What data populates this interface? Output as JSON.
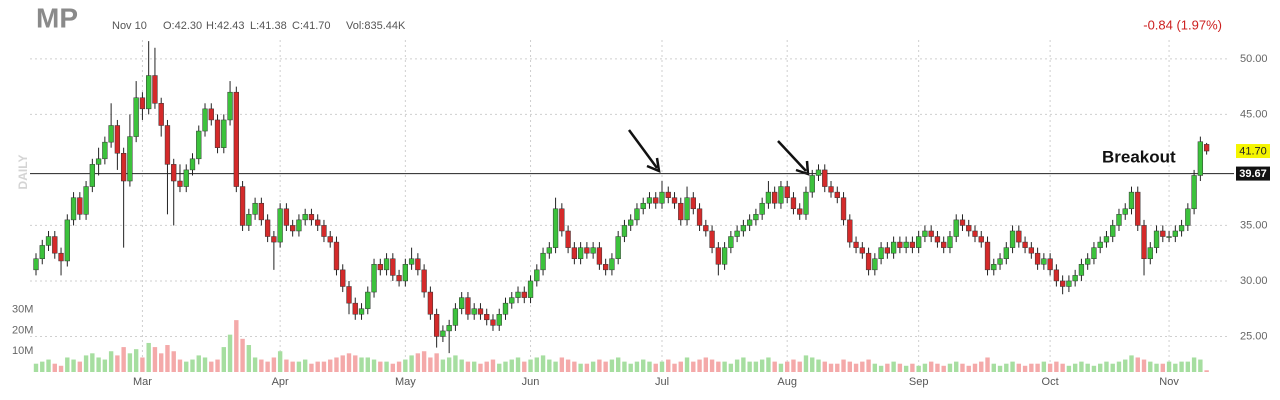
{
  "chart_data": {
    "type": "candlestick",
    "ticker": "MP",
    "date": "Nov 10",
    "open_label": "O:42.30",
    "high_label": "H:42.43",
    "low_label": "L:41.38",
    "close_label": "C:41.70",
    "volume_label": "Vol:835.44K",
    "change_label": "-0.84 (1.97%)",
    "period_label": "DAILY",
    "annotation": "Breakout",
    "up_color": "#3cc23c",
    "down_color": "#d42a2a",
    "up_volume_color": "#a6dea0",
    "down_volume_color": "#f4a9a9",
    "grid": true,
    "ylim": [
      21.8,
      51.7
    ],
    "yticks": [
      {
        "value": 25,
        "label": "25.00"
      },
      {
        "value": 30,
        "label": "30.00"
      },
      {
        "value": 35,
        "label": "35.00"
      },
      {
        "value": 45,
        "label": "45.00"
      },
      {
        "value": 50,
        "label": "50.00"
      }
    ],
    "y2lim": [
      0,
      160
    ],
    "y2ticks": [
      {
        "value": 10,
        "label": "10M"
      },
      {
        "value": 20,
        "label": "20M"
      },
      {
        "value": 30,
        "label": "30M"
      }
    ],
    "reference_line": {
      "value": 39.67,
      "label": "39.67"
    },
    "last_price": {
      "value": 41.7,
      "label": "41.70"
    },
    "categories": [
      null,
      null,
      null,
      null,
      null,
      null,
      null,
      null,
      null,
      null,
      null,
      null,
      null,
      null,
      null,
      null,
      null,
      "Mar",
      null,
      null,
      null,
      null,
      null,
      null,
      null,
      null,
      null,
      null,
      null,
      null,
      null,
      null,
      null,
      null,
      null,
      null,
      null,
      null,
      null,
      "Apr",
      null,
      null,
      null,
      null,
      null,
      null,
      null,
      null,
      null,
      null,
      null,
      null,
      null,
      null,
      null,
      null,
      null,
      null,
      null,
      "May",
      null,
      null,
      null,
      null,
      null,
      null,
      null,
      null,
      null,
      null,
      null,
      null,
      null,
      null,
      null,
      null,
      null,
      null,
      null,
      "Jun",
      null,
      null,
      null,
      null,
      null,
      null,
      null,
      null,
      null,
      null,
      null,
      null,
      null,
      null,
      null,
      null,
      null,
      null,
      null,
      null,
      "Jul",
      null,
      null,
      null,
      null,
      null,
      null,
      null,
      null,
      null,
      null,
      null,
      null,
      null,
      null,
      null,
      null,
      null,
      null,
      null,
      "Aug",
      null,
      null,
      null,
      null,
      null,
      null,
      null,
      null,
      null,
      null,
      null,
      null,
      null,
      null,
      null,
      null,
      null,
      null,
      null,
      null,
      "Sep",
      null,
      null,
      null,
      null,
      null,
      null,
      null,
      null,
      null,
      null,
      null,
      null,
      null,
      null,
      null,
      null,
      null,
      null,
      null,
      null,
      "Oct",
      null,
      null,
      null,
      null,
      null,
      null,
      null,
      null,
      null,
      null,
      null,
      null,
      null,
      null,
      null,
      null,
      null,
      null,
      "Nov",
      null,
      null,
      null,
      null,
      null,
      null
    ],
    "open": [
      31.0,
      32.0,
      33.2,
      34.0,
      32.5,
      31.8,
      35.5,
      37.5,
      36.0,
      38.5,
      40.5,
      41.0,
      42.5,
      44.0,
      41.5,
      39.0,
      43.0,
      46.5,
      45.5,
      48.5,
      46.0,
      44.0,
      40.5,
      39.0,
      38.5,
      40.0,
      41.0,
      43.5,
      45.5,
      44.5,
      42.0,
      44.5,
      47.0,
      38.5,
      35.0,
      36.0,
      37.0,
      35.5,
      34.0,
      33.5,
      36.5,
      35.0,
      34.5,
      35.5,
      36.0,
      35.5,
      35.0,
      34.0,
      33.5,
      31.0,
      29.5,
      28.0,
      27.0,
      27.5,
      29.0,
      31.5,
      31.0,
      32.0,
      30.5,
      30.0,
      31.5,
      32.0,
      31.0,
      29.0,
      27.0,
      25.0,
      25.5,
      26.0,
      27.5,
      28.5,
      27.0,
      27.5,
      27.0,
      26.5,
      26.0,
      27.0,
      28.0,
      28.5,
      29.0,
      28.5,
      30.0,
      31.0,
      32.5,
      33.0,
      36.5,
      34.5,
      33.0,
      32.0,
      33.0,
      32.5,
      33.0,
      31.5,
      31.0,
      32.0,
      34.0,
      35.0,
      35.5,
      36.5,
      37.0,
      37.5,
      37.0,
      38.0,
      37.5,
      37.0,
      35.5,
      37.5,
      36.5,
      35.0,
      34.5,
      33.0,
      31.5,
      33.0,
      34.0,
      34.5,
      35.0,
      35.5,
      36.0,
      37.0,
      38.0,
      37.0,
      38.5,
      37.5,
      36.5,
      36.0,
      38.0,
      39.5,
      40.0,
      38.5,
      38.0,
      37.5,
      35.5,
      33.5,
      33.0,
      32.5,
      31.0,
      32.0,
      33.0,
      32.5,
      33.5,
      33.0,
      33.5,
      33.0,
      34.0,
      34.5,
      34.0,
      33.5,
      33.0,
      34.0,
      35.5,
      35.0,
      34.5,
      34.0,
      33.5,
      31.0,
      31.5,
      32.0,
      33.0,
      34.5,
      33.5,
      33.0,
      32.5,
      31.5,
      32.0,
      31.0,
      30.0,
      29.5,
      30.0,
      30.5,
      31.5,
      32.0,
      33.0,
      33.5,
      34.0,
      35.0,
      36.0,
      36.5,
      38.0,
      35.0,
      32.0,
      33.0,
      34.5,
      34.0,
      34.0,
      34.5,
      35.0,
      36.5,
      39.5,
      42.3
    ],
    "high": [
      32.5,
      33.7,
      34.5,
      34.5,
      33.0,
      36.0,
      38.0,
      38.0,
      39.0,
      41.0,
      42.0,
      43.0,
      46.0,
      44.5,
      42.0,
      45.0,
      48.0,
      47.0,
      51.6,
      51.0,
      46.5,
      44.5,
      41.0,
      40.5,
      40.5,
      41.5,
      44.0,
      46.0,
      46.0,
      45.0,
      45.0,
      48.0,
      47.5,
      39.0,
      36.5,
      37.5,
      37.5,
      36.0,
      34.5,
      37.0,
      37.0,
      35.5,
      36.0,
      36.5,
      36.5,
      36.0,
      35.5,
      34.5,
      34.0,
      31.5,
      30.0,
      28.5,
      28.0,
      29.5,
      32.0,
      32.0,
      32.5,
      32.5,
      31.0,
      32.0,
      33.0,
      32.5,
      31.5,
      29.5,
      27.5,
      26.0,
      26.5,
      28.0,
      29.0,
      29.0,
      28.0,
      28.0,
      27.5,
      27.0,
      27.5,
      28.5,
      29.0,
      29.5,
      29.5,
      30.5,
      31.5,
      33.0,
      33.5,
      37.5,
      37.0,
      35.0,
      33.5,
      33.5,
      33.5,
      33.5,
      33.5,
      32.0,
      32.5,
      34.5,
      35.5,
      36.0,
      37.0,
      37.5,
      38.0,
      38.0,
      39.0,
      38.5,
      38.0,
      37.5,
      38.5,
      38.0,
      37.0,
      35.5,
      35.0,
      33.5,
      33.5,
      34.5,
      35.0,
      35.5,
      36.0,
      36.5,
      37.5,
      39.0,
      38.5,
      39.0,
      39.0,
      38.0,
      37.0,
      38.5,
      40.0,
      40.5,
      40.5,
      39.0,
      38.5,
      38.0,
      36.0,
      34.0,
      33.5,
      33.0,
      32.5,
      33.5,
      33.5,
      34.0,
      34.0,
      34.0,
      34.0,
      34.5,
      35.0,
      35.0,
      34.5,
      34.0,
      34.5,
      36.0,
      36.0,
      35.5,
      35.0,
      34.5,
      34.0,
      32.0,
      32.5,
      33.5,
      35.0,
      35.0,
      34.0,
      33.5,
      33.0,
      32.5,
      32.5,
      31.5,
      30.5,
      30.5,
      31.0,
      32.0,
      32.5,
      33.5,
      34.0,
      34.5,
      35.5,
      36.5,
      37.0,
      38.5,
      38.5,
      35.5,
      33.5,
      35.0,
      35.0,
      34.5,
      35.0,
      35.5,
      37.0,
      40.0,
      43.0,
      42.43
    ],
    "low": [
      30.5,
      31.5,
      32.7,
      32.0,
      30.5,
      31.3,
      35.0,
      35.5,
      35.5,
      38.0,
      39.5,
      40.5,
      42.0,
      40.0,
      33.0,
      38.5,
      42.5,
      44.5,
      45.0,
      45.5,
      43.0,
      36.0,
      35.0,
      38.0,
      38.0,
      39.5,
      40.5,
      43.0,
      44.0,
      41.5,
      41.5,
      44.0,
      38.0,
      34.5,
      34.5,
      35.5,
      35.0,
      33.5,
      31.0,
      33.0,
      34.5,
      34.0,
      34.0,
      35.0,
      35.0,
      34.5,
      33.5,
      33.0,
      30.5,
      29.0,
      27.0,
      26.5,
      26.5,
      27.0,
      28.5,
      30.5,
      30.5,
      30.0,
      29.5,
      29.5,
      31.0,
      30.5,
      28.5,
      26.5,
      24.0,
      24.5,
      23.5,
      25.5,
      27.0,
      26.5,
      26.5,
      26.5,
      26.0,
      25.5,
      25.5,
      26.5,
      27.5,
      28.0,
      28.0,
      28.0,
      29.5,
      30.5,
      32.0,
      32.5,
      34.0,
      32.5,
      31.5,
      31.5,
      32.0,
      32.0,
      31.0,
      30.5,
      30.5,
      31.5,
      33.5,
      34.5,
      35.0,
      36.0,
      36.5,
      36.5,
      36.5,
      37.0,
      36.5,
      35.0,
      35.0,
      36.0,
      34.5,
      34.0,
      32.5,
      30.5,
      31.0,
      32.5,
      33.5,
      34.0,
      34.5,
      35.0,
      35.5,
      36.5,
      36.5,
      36.5,
      37.0,
      36.0,
      35.5,
      35.5,
      37.5,
      39.0,
      38.0,
      37.5,
      37.0,
      35.0,
      33.0,
      32.5,
      32.0,
      30.5,
      30.5,
      31.5,
      32.0,
      32.0,
      32.5,
      32.5,
      32.5,
      32.5,
      33.5,
      33.5,
      33.0,
      32.5,
      32.5,
      33.5,
      34.5,
      34.0,
      33.5,
      33.0,
      30.5,
      30.5,
      31.0,
      31.5,
      32.5,
      33.0,
      32.5,
      32.0,
      31.0,
      31.0,
      30.5,
      29.5,
      28.8,
      29.0,
      29.5,
      30.0,
      31.0,
      31.5,
      32.5,
      33.0,
      33.5,
      34.5,
      35.5,
      36.0,
      34.5,
      30.5,
      31.5,
      32.5,
      33.5,
      33.5,
      33.5,
      34.0,
      34.5,
      36.0,
      39.0,
      41.38
    ],
    "close": [
      32.0,
      33.2,
      34.0,
      32.5,
      31.8,
      35.5,
      37.5,
      36.0,
      38.5,
      40.5,
      41.0,
      42.5,
      44.0,
      41.5,
      39.0,
      43.0,
      46.5,
      45.5,
      48.5,
      46.0,
      44.0,
      40.5,
      39.0,
      38.5,
      40.0,
      41.0,
      43.5,
      45.5,
      44.5,
      42.0,
      44.5,
      47.0,
      38.5,
      35.0,
      36.0,
      37.0,
      35.5,
      34.0,
      33.5,
      36.5,
      35.0,
      34.5,
      35.5,
      36.0,
      35.5,
      35.0,
      34.0,
      33.5,
      31.0,
      29.5,
      28.0,
      27.0,
      27.5,
      29.0,
      31.5,
      31.0,
      32.0,
      30.5,
      30.0,
      31.5,
      32.0,
      31.0,
      29.0,
      27.0,
      25.0,
      25.5,
      26.0,
      27.5,
      28.5,
      27.0,
      27.5,
      27.0,
      26.5,
      26.0,
      27.0,
      28.0,
      28.5,
      29.0,
      28.5,
      30.0,
      31.0,
      32.5,
      33.0,
      36.5,
      34.5,
      33.0,
      32.0,
      33.0,
      32.5,
      33.0,
      31.5,
      31.0,
      32.0,
      34.0,
      35.0,
      35.5,
      36.5,
      37.0,
      37.5,
      37.0,
      38.0,
      37.5,
      37.0,
      35.5,
      37.5,
      36.5,
      35.0,
      34.5,
      33.0,
      31.5,
      33.0,
      34.0,
      34.5,
      35.0,
      35.5,
      36.0,
      37.0,
      38.0,
      37.0,
      38.5,
      37.5,
      36.5,
      36.0,
      38.0,
      39.5,
      40.0,
      38.5,
      38.0,
      37.5,
      35.5,
      33.5,
      33.0,
      32.5,
      31.0,
      32.0,
      33.0,
      32.5,
      33.5,
      33.0,
      33.5,
      33.0,
      34.0,
      34.5,
      34.0,
      33.5,
      33.0,
      34.0,
      35.5,
      35.0,
      34.5,
      34.0,
      33.5,
      31.0,
      31.5,
      32.0,
      33.0,
      34.5,
      33.5,
      33.0,
      32.5,
      31.5,
      32.0,
      31.0,
      30.0,
      29.5,
      30.0,
      30.5,
      31.5,
      32.0,
      33.0,
      33.5,
      34.0,
      35.0,
      36.0,
      36.5,
      38.0,
      35.0,
      32.0,
      33.0,
      34.5,
      34.0,
      34.0,
      34.5,
      35.0,
      36.5,
      39.5,
      42.54,
      41.7
    ],
    "volume": [
      4,
      5,
      6,
      4,
      3,
      7,
      6,
      5,
      8,
      9,
      7,
      6,
      10,
      8,
      12,
      9,
      11,
      7,
      14,
      12,
      9,
      13,
      10,
      6,
      5,
      6,
      8,
      7,
      5,
      6,
      12,
      18,
      25,
      16,
      13,
      7,
      6,
      5,
      7,
      10,
      6,
      5,
      5,
      6,
      4,
      5,
      5,
      6,
      7,
      8,
      9,
      8,
      7,
      7,
      6,
      5,
      5,
      4,
      5,
      6,
      8,
      9,
      10,
      7,
      9,
      6,
      7,
      8,
      6,
      5,
      5,
      4,
      5,
      6,
      4,
      5,
      6,
      7,
      5,
      6,
      7,
      8,
      6,
      5,
      7,
      6,
      5,
      4,
      4,
      5,
      6,
      5,
      6,
      7,
      5,
      4,
      5,
      6,
      5,
      4,
      5,
      6,
      4,
      5,
      7,
      5,
      6,
      7,
      6,
      5,
      5,
      4,
      6,
      7,
      5,
      5,
      6,
      7,
      5,
      4,
      5,
      6,
      5,
      8,
      7,
      6,
      5,
      4,
      4,
      6,
      5,
      4,
      5,
      6,
      4,
      3,
      4,
      5,
      4,
      3,
      4,
      3,
      4,
      5,
      4,
      3,
      4,
      5,
      4,
      3,
      4,
      5,
      7,
      4,
      3,
      4,
      5,
      4,
      3,
      4,
      4,
      5,
      4,
      5,
      4,
      3,
      4,
      5,
      4,
      3,
      4,
      5,
      4,
      5,
      6,
      8,
      7,
      6,
      5,
      4,
      4,
      5,
      4,
      5,
      5,
      7,
      6,
      0.83544
    ]
  }
}
